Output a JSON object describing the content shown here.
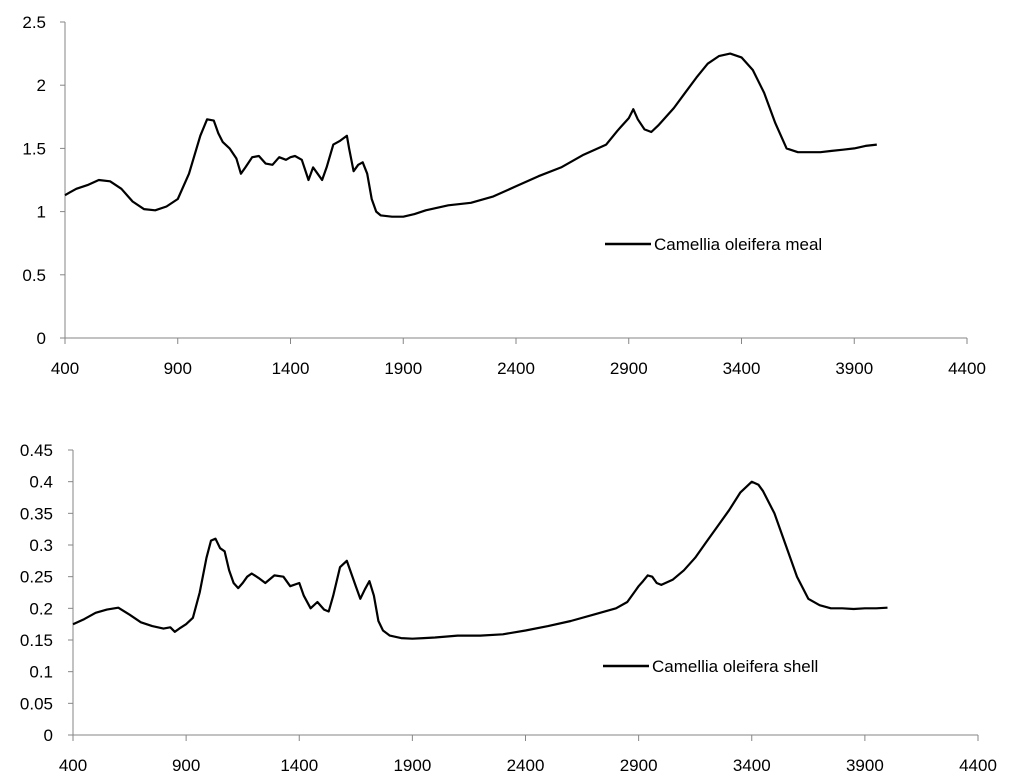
{
  "chart_data": [
    {
      "type": "line",
      "title": "",
      "xlabel": "",
      "ylabel": "",
      "xlim": [
        400,
        4400
      ],
      "ylim": [
        0,
        2.5
      ],
      "x_ticks": [
        400,
        900,
        1400,
        1900,
        2400,
        2900,
        3400,
        3900,
        4400
      ],
      "y_ticks": [
        0,
        0.5,
        1,
        1.5,
        2,
        2.5
      ],
      "x_tick_labels": [
        "400",
        "900",
        "1400",
        "1900",
        "2400",
        "2900",
        "3400",
        "3900",
        "4400"
      ],
      "y_tick_labels": [
        "0",
        "0.5",
        "1",
        "1.5",
        "2",
        "2.5"
      ],
      "grid": false,
      "legend": "center-right",
      "series": [
        {
          "name": "Camellia oleifera meal",
          "color": "#000000",
          "x": [
            400,
            420,
            450,
            500,
            550,
            600,
            650,
            700,
            750,
            800,
            850,
            900,
            950,
            1000,
            1030,
            1060,
            1080,
            1100,
            1130,
            1160,
            1180,
            1200,
            1230,
            1260,
            1290,
            1320,
            1350,
            1380,
            1400,
            1420,
            1450,
            1480,
            1500,
            1520,
            1540,
            1560,
            1590,
            1620,
            1650,
            1660,
            1680,
            1700,
            1720,
            1740,
            1760,
            1780,
            1800,
            1850,
            1900,
            1950,
            2000,
            2100,
            2200,
            2300,
            2400,
            2500,
            2600,
            2700,
            2800,
            2850,
            2870,
            2900,
            2920,
            2940,
            2970,
            3000,
            3030,
            3050,
            3100,
            3150,
            3200,
            3250,
            3300,
            3350,
            3400,
            3450,
            3500,
            3550,
            3600,
            3650,
            3700,
            3750,
            3800,
            3850,
            3900,
            3950,
            4000
          ],
          "y": [
            1.13,
            1.15,
            1.18,
            1.21,
            1.25,
            1.24,
            1.18,
            1.08,
            1.02,
            1.01,
            1.04,
            1.1,
            1.3,
            1.6,
            1.73,
            1.72,
            1.62,
            1.55,
            1.5,
            1.42,
            1.3,
            1.35,
            1.43,
            1.44,
            1.38,
            1.37,
            1.43,
            1.41,
            1.43,
            1.44,
            1.41,
            1.25,
            1.35,
            1.3,
            1.25,
            1.35,
            1.53,
            1.56,
            1.6,
            1.5,
            1.32,
            1.37,
            1.39,
            1.3,
            1.1,
            1.0,
            0.97,
            0.96,
            0.96,
            0.98,
            1.01,
            1.05,
            1.07,
            1.12,
            1.2,
            1.28,
            1.35,
            1.45,
            1.53,
            1.64,
            1.68,
            1.74,
            1.81,
            1.73,
            1.65,
            1.63,
            1.68,
            1.72,
            1.82,
            1.94,
            2.06,
            2.17,
            2.23,
            2.25,
            2.22,
            2.12,
            1.94,
            1.7,
            1.5,
            1.47,
            1.47,
            1.47,
            1.48,
            1.49,
            1.5,
            1.52,
            1.53
          ]
        }
      ]
    },
    {
      "type": "line",
      "title": "",
      "xlabel": "",
      "ylabel": "",
      "xlim": [
        400,
        4400
      ],
      "ylim": [
        0,
        0.45
      ],
      "x_ticks": [
        400,
        900,
        1400,
        1900,
        2400,
        2900,
        3400,
        3900,
        4400
      ],
      "y_ticks": [
        0,
        0.05,
        0.1,
        0.15,
        0.2,
        0.25,
        0.3,
        0.35,
        0.4,
        0.45
      ],
      "x_tick_labels": [
        "400",
        "900",
        "1400",
        "1900",
        "2400",
        "2900",
        "3400",
        "3900",
        "4400"
      ],
      "y_tick_labels": [
        "0",
        "0.05",
        "0.1",
        "0.15",
        "0.2",
        "0.25",
        "0.3",
        "0.35",
        "0.4",
        "0.45"
      ],
      "grid": false,
      "legend": "center-right",
      "series": [
        {
          "name": "Camellia oleifera shell",
          "color": "#000000",
          "x": [
            400,
            450,
            500,
            550,
            600,
            650,
            700,
            750,
            800,
            830,
            850,
            870,
            900,
            930,
            960,
            990,
            1010,
            1030,
            1050,
            1070,
            1090,
            1110,
            1130,
            1150,
            1170,
            1190,
            1220,
            1250,
            1290,
            1330,
            1360,
            1400,
            1420,
            1450,
            1480,
            1510,
            1530,
            1550,
            1580,
            1610,
            1630,
            1650,
            1670,
            1690,
            1710,
            1730,
            1750,
            1770,
            1800,
            1850,
            1900,
            1950,
            2000,
            2100,
            2200,
            2300,
            2400,
            2500,
            2600,
            2700,
            2800,
            2850,
            2900,
            2920,
            2940,
            2960,
            2980,
            3000,
            3050,
            3100,
            3150,
            3200,
            3250,
            3300,
            3350,
            3400,
            3430,
            3450,
            3500,
            3550,
            3600,
            3650,
            3700,
            3750,
            3800,
            3850,
            3900,
            3950,
            4000
          ],
          "y": [
            0.175,
            0.183,
            0.193,
            0.198,
            0.201,
            0.19,
            0.178,
            0.172,
            0.168,
            0.17,
            0.163,
            0.168,
            0.175,
            0.185,
            0.225,
            0.28,
            0.307,
            0.31,
            0.295,
            0.29,
            0.26,
            0.24,
            0.232,
            0.24,
            0.25,
            0.255,
            0.248,
            0.24,
            0.252,
            0.25,
            0.235,
            0.24,
            0.22,
            0.2,
            0.21,
            0.198,
            0.195,
            0.22,
            0.265,
            0.275,
            0.255,
            0.235,
            0.215,
            0.23,
            0.243,
            0.22,
            0.18,
            0.165,
            0.157,
            0.153,
            0.152,
            0.153,
            0.154,
            0.157,
            0.157,
            0.159,
            0.165,
            0.172,
            0.18,
            0.19,
            0.2,
            0.21,
            0.235,
            0.243,
            0.252,
            0.25,
            0.24,
            0.237,
            0.245,
            0.26,
            0.28,
            0.305,
            0.33,
            0.355,
            0.383,
            0.4,
            0.395,
            0.385,
            0.35,
            0.3,
            0.25,
            0.215,
            0.205,
            0.2,
            0.2,
            0.199,
            0.2,
            0.2,
            0.201
          ]
        }
      ]
    }
  ]
}
